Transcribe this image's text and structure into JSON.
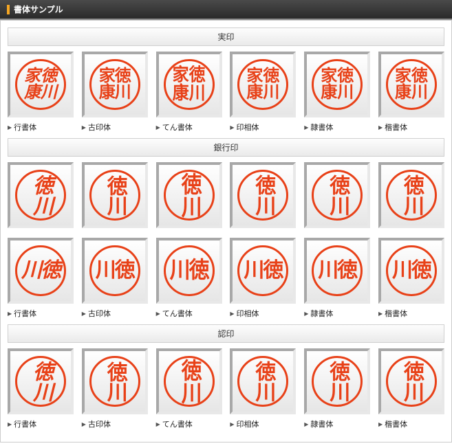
{
  "colors": {
    "stamp_stroke": "#e84118",
    "header_bg_top": "#4a4a4a",
    "header_bg_bottom": "#2a2a2a",
    "marker": "#f5a623",
    "box_border_dark": "#a8a8a8",
    "box_border_light": "#e8e8e8"
  },
  "page_title": "書体サンプル",
  "font_styles": [
    {
      "key": "gyosho",
      "label": "行書体",
      "css": "f-gyosho"
    },
    {
      "key": "koin",
      "label": "古印体",
      "css": "f-koin"
    },
    {
      "key": "tensho",
      "label": "てん書体",
      "css": "f-tensho"
    },
    {
      "key": "insotai",
      "label": "印相体",
      "css": "f-insotai"
    },
    {
      "key": "reisho",
      "label": "隷書体",
      "css": "f-reisho"
    },
    {
      "key": "kaisho",
      "label": "楷書体",
      "css": "f-kaisho"
    }
  ],
  "sections": [
    {
      "title": "実印",
      "show_labels": true,
      "rows": [
        {
          "text": "徳川家康",
          "layout": "grid2x2",
          "font_size": 24
        }
      ]
    },
    {
      "title": "銀行印",
      "show_labels": true,
      "rows": [
        {
          "text": "徳川",
          "layout": "vertical",
          "font_size": 30
        },
        {
          "text": "徳川",
          "layout": "horizontal",
          "font_size": 30
        }
      ]
    },
    {
      "title": "認印",
      "show_labels": true,
      "rows": [
        {
          "text": "徳川",
          "layout": "vertical",
          "font_size": 30
        }
      ]
    }
  ]
}
